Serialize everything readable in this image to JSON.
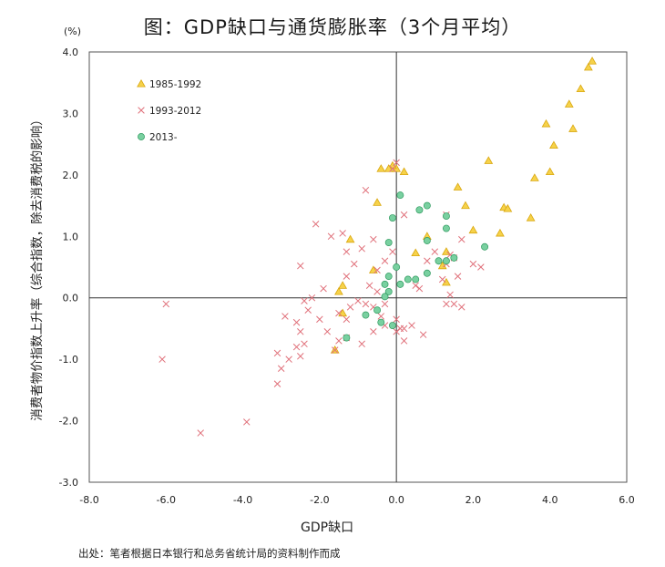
{
  "title": "图：GDP缺口与通货膨胀率（3个月平均）",
  "unit": "(%)",
  "source": "出处：笔者根据日本银行和总务省统计局的资料制作而成",
  "colors": {
    "s1_fill": "#f6d24a",
    "s1_stroke": "#d9a70f",
    "s2": "#e0707a",
    "s3_fill": "#79d0a0",
    "s3_stroke": "#2f9a5f",
    "axis": "#333333",
    "frame": "#555555"
  },
  "chart_data": {
    "type": "scatter",
    "xlabel": "GDP缺口",
    "ylabel": "消费者物价指数上升率（综合指数，除去消费税的影响）",
    "xlim": [
      -8,
      6
    ],
    "ylim": [
      -3,
      4
    ],
    "xticks": [
      "-8.0",
      "-6.0",
      "-4.0",
      "-2.0",
      "0.0",
      "2.0",
      "4.0",
      "6.0"
    ],
    "yticks": [
      "4.0",
      "3.0",
      "2.0",
      "1.0",
      "0.0",
      "-1.0",
      "-2.0",
      "-3.0"
    ],
    "legend_position": "top-left",
    "series": [
      {
        "name": "1985-1992",
        "marker": "triangle",
        "points": [
          [
            5.1,
            3.85
          ],
          [
            5.0,
            3.75
          ],
          [
            4.8,
            3.4
          ],
          [
            4.5,
            3.15
          ],
          [
            4.6,
            2.75
          ],
          [
            3.9,
            2.83
          ],
          [
            4.1,
            2.48
          ],
          [
            4.0,
            2.05
          ],
          [
            3.6,
            1.95
          ],
          [
            3.5,
            1.3
          ],
          [
            2.4,
            2.23
          ],
          [
            2.8,
            1.47
          ],
          [
            2.9,
            1.45
          ],
          [
            2.7,
            1.05
          ],
          [
            2.0,
            1.1
          ],
          [
            1.8,
            1.5
          ],
          [
            1.6,
            1.8
          ],
          [
            1.3,
            0.75
          ],
          [
            1.2,
            0.52
          ],
          [
            1.3,
            0.25
          ],
          [
            0.8,
            1.0
          ],
          [
            0.5,
            0.73
          ],
          [
            0.2,
            2.05
          ],
          [
            0.0,
            2.1
          ],
          [
            -0.1,
            2.15
          ],
          [
            -0.2,
            2.1
          ],
          [
            -0.4,
            2.1
          ],
          [
            -0.5,
            1.55
          ],
          [
            -0.6,
            0.45
          ],
          [
            -1.2,
            0.95
          ],
          [
            -1.4,
            0.2
          ],
          [
            -1.5,
            0.1
          ],
          [
            -1.4,
            -0.25
          ],
          [
            -1.6,
            -0.85
          ]
        ]
      },
      {
        "name": "1993-2012",
        "marker": "x",
        "points": [
          [
            -6.0,
            -0.1
          ],
          [
            -6.1,
            -1.0
          ],
          [
            -5.1,
            -2.2
          ],
          [
            -3.9,
            -2.02
          ],
          [
            -3.1,
            -1.4
          ],
          [
            -3.0,
            -1.15
          ],
          [
            -3.1,
            -0.9
          ],
          [
            -2.8,
            -1.0
          ],
          [
            -2.6,
            -0.8
          ],
          [
            -2.5,
            -0.95
          ],
          [
            -2.4,
            -0.75
          ],
          [
            -2.9,
            -0.3
          ],
          [
            -2.6,
            -0.4
          ],
          [
            -2.5,
            -0.55
          ],
          [
            -2.3,
            -0.2
          ],
          [
            -2.2,
            0.0
          ],
          [
            -2.4,
            -0.05
          ],
          [
            -2.0,
            -0.35
          ],
          [
            -1.8,
            -0.55
          ],
          [
            -1.5,
            -0.7
          ],
          [
            -1.6,
            -0.85
          ],
          [
            -1.3,
            -0.65
          ],
          [
            -1.5,
            -0.25
          ],
          [
            -1.3,
            -0.35
          ],
          [
            -2.1,
            1.2
          ],
          [
            -1.9,
            0.15
          ],
          [
            -2.5,
            0.52
          ],
          [
            -1.7,
            1.0
          ],
          [
            -1.4,
            1.05
          ],
          [
            -1.3,
            0.75
          ],
          [
            -1.1,
            0.55
          ],
          [
            -0.9,
            0.8
          ],
          [
            -0.8,
            1.75
          ],
          [
            -0.6,
            0.95
          ],
          [
            -1.0,
            -0.05
          ],
          [
            -0.8,
            -0.1
          ],
          [
            -0.6,
            -0.15
          ],
          [
            -0.5,
            0.1
          ],
          [
            -0.4,
            -0.3
          ],
          [
            -0.6,
            -0.55
          ],
          [
            -0.3,
            -0.45
          ],
          [
            -0.9,
            -0.75
          ],
          [
            -1.2,
            -0.15
          ],
          [
            -1.3,
            0.35
          ],
          [
            -0.7,
            0.2
          ],
          [
            -0.5,
            0.45
          ],
          [
            -0.3,
            0.6
          ],
          [
            -0.1,
            2.1
          ],
          [
            0.0,
            2.2
          ],
          [
            0.2,
            1.35
          ],
          [
            -0.1,
            0.75
          ],
          [
            0.1,
            -0.5
          ],
          [
            0.0,
            -0.35
          ],
          [
            0.2,
            -0.7
          ],
          [
            0.4,
            -0.45
          ],
          [
            0.6,
            0.15
          ],
          [
            0.5,
            0.2
          ],
          [
            0.8,
            0.6
          ],
          [
            1.0,
            0.75
          ],
          [
            1.3,
            0.55
          ],
          [
            1.2,
            0.3
          ],
          [
            1.4,
            0.05
          ],
          [
            1.5,
            -0.1
          ],
          [
            1.7,
            -0.15
          ],
          [
            1.6,
            0.35
          ],
          [
            1.7,
            0.95
          ],
          [
            2.0,
            0.55
          ],
          [
            2.2,
            0.5
          ],
          [
            1.3,
            1.35
          ],
          [
            1.4,
            0.7
          ],
          [
            1.5,
            0.65
          ],
          [
            1.3,
            -0.1
          ],
          [
            0.7,
            -0.6
          ],
          [
            -0.3,
            -0.1
          ],
          [
            0.0,
            -0.55
          ],
          [
            0.2,
            -0.5
          ]
        ]
      },
      {
        "name": "2013-",
        "marker": "circle",
        "points": [
          [
            0.1,
            1.67
          ],
          [
            0.8,
            1.5
          ],
          [
            -0.1,
            1.3
          ],
          [
            0.6,
            1.43
          ],
          [
            1.3,
            1.33
          ],
          [
            1.3,
            1.13
          ],
          [
            2.3,
            0.83
          ],
          [
            0.8,
            0.93
          ],
          [
            -0.2,
            0.9
          ],
          [
            1.1,
            0.6
          ],
          [
            1.5,
            0.65
          ],
          [
            0.8,
            0.4
          ],
          [
            1.3,
            0.6
          ],
          [
            0.5,
            0.3
          ],
          [
            0.3,
            0.3
          ],
          [
            0.0,
            0.5
          ],
          [
            0.1,
            0.22
          ],
          [
            -0.2,
            0.35
          ],
          [
            -0.3,
            0.22
          ],
          [
            -0.2,
            0.1
          ],
          [
            -0.3,
            0.02
          ],
          [
            -0.5,
            -0.2
          ],
          [
            -0.8,
            -0.28
          ],
          [
            -0.4,
            -0.4
          ],
          [
            -0.1,
            -0.45
          ],
          [
            -1.3,
            -0.65
          ]
        ]
      }
    ]
  }
}
